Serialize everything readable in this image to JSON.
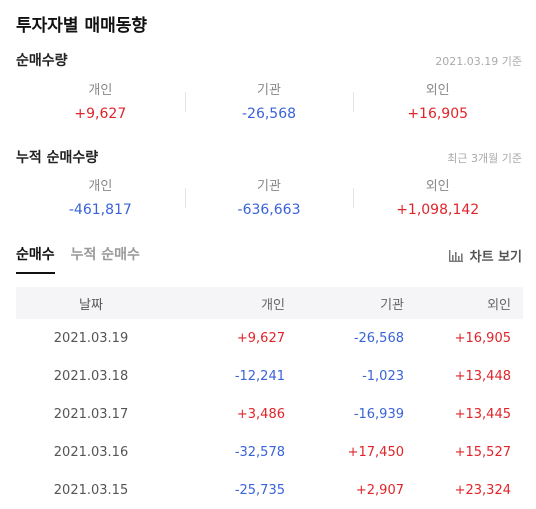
{
  "header": {
    "title": "투자자별 매매동향"
  },
  "net_volume": {
    "title": "순매수량",
    "note": "2021.03.19 기준",
    "items": [
      {
        "label": "개인",
        "value": "+9,627",
        "color": "#e0252a"
      },
      {
        "label": "기관",
        "value": "-26,568",
        "color": "#3a63d8"
      },
      {
        "label": "외인",
        "value": "+16,905",
        "color": "#e0252a"
      }
    ]
  },
  "cumulative": {
    "title": "누적 순매수량",
    "note": "최근 3개월 기준",
    "items": [
      {
        "label": "개인",
        "value": "-461,817",
        "color": "#3a63d8"
      },
      {
        "label": "기관",
        "value": "-636,663",
        "color": "#3a63d8"
      },
      {
        "label": "외인",
        "value": "+1,098,142",
        "color": "#e0252a"
      }
    ]
  },
  "tabs": [
    {
      "label": "순매수",
      "active": true
    },
    {
      "label": "누적 순매수",
      "active": false
    }
  ],
  "chart_button": {
    "label": "차트 보기",
    "icon": "bar-chart-icon"
  },
  "table": {
    "headers": [
      "날짜",
      "개인",
      "기관",
      "외인"
    ],
    "rows": [
      [
        "2021.03.19",
        "+9,627",
        "-26,568",
        "+16,905"
      ],
      [
        "2021.03.18",
        "-12,241",
        "-1,023",
        "+13,448"
      ],
      [
        "2021.03.17",
        "+3,486",
        "-16,939",
        "+13,445"
      ],
      [
        "2021.03.16",
        "-32,578",
        "+17,450",
        "+15,527"
      ],
      [
        "2021.03.15",
        "-25,735",
        "+2,907",
        "+23,324"
      ]
    ]
  },
  "colors": {
    "positive": "#e0252a",
    "negative": "#3a63d8"
  }
}
